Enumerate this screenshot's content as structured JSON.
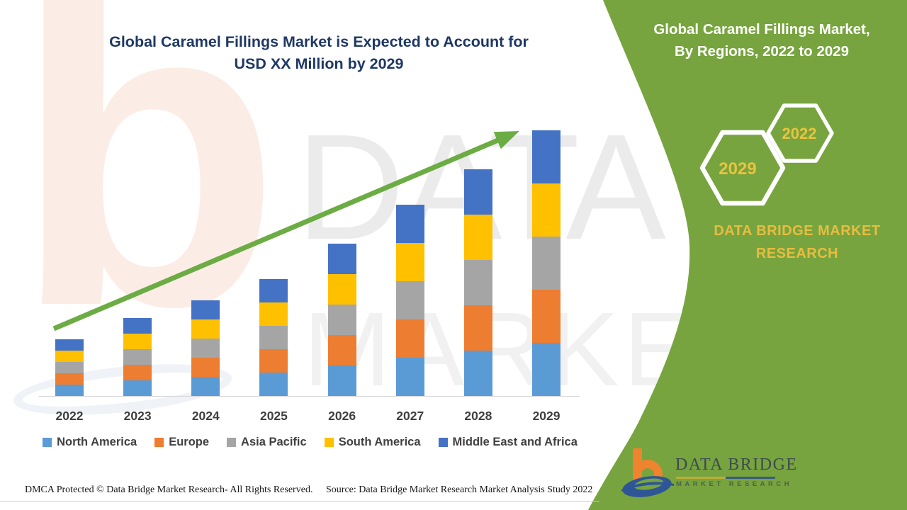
{
  "chart": {
    "title_lines": [
      "Global Caramel Fillings Market is Expected to Account for",
      "USD XX Million by 2029"
    ],
    "title_color": "#1F3864"
  },
  "chart_data": {
    "type": "bar",
    "stacked": true,
    "title": "Global Caramel Fillings Market is Expected to Account for USD XX Million by 2029",
    "xlabel": "",
    "ylabel": "",
    "value_note": "values are unlabeled (USD XX Million); heights estimated in relative units from pixels",
    "categories": [
      "2022",
      "2023",
      "2024",
      "2025",
      "2026",
      "2027",
      "2028",
      "2029"
    ],
    "series": [
      {
        "name": "North America",
        "color": "#5B9BD5",
        "values": [
          16,
          22,
          27,
          33,
          43,
          54,
          64,
          75
        ]
      },
      {
        "name": "Europe",
        "color": "#ED7D31",
        "values": [
          16,
          22,
          27,
          33,
          43,
          54,
          64,
          75
        ]
      },
      {
        "name": "Asia Pacific",
        "color": "#A5A5A5",
        "values": [
          16,
          22,
          27,
          33,
          43,
          54,
          64,
          75
        ]
      },
      {
        "name": "South America",
        "color": "#FFC000",
        "values": [
          16,
          22,
          27,
          33,
          43,
          54,
          64,
          75
        ]
      },
      {
        "name": "Middle East and Africa",
        "color": "#4472C4",
        "values": [
          16,
          22,
          27,
          33,
          43,
          54,
          64,
          75
        ]
      }
    ],
    "totals": [
      80,
      110,
      135,
      165,
      215,
      270,
      320,
      375
    ],
    "ylim": [
      0,
      391
    ],
    "grid": false,
    "legend_position": "bottom",
    "trend_arrow": {
      "present": true,
      "color": "#6CAC44"
    }
  },
  "side_panel": {
    "bg_color": "#77A43E",
    "title_lines": [
      "Global Caramel Fillings Market,",
      "By Regions, 2022 to 2029"
    ],
    "hexagons": [
      {
        "label": "2029"
      },
      {
        "label": "2022"
      }
    ],
    "hex_label_color": "#E9C43F",
    "brand_lines": [
      "DATA BRIDGE MARKET",
      "RESEARCH"
    ],
    "brand_color": "#E7BD41"
  },
  "logo": {
    "name": "DATA BRIDGE",
    "subtitle": "MARKET RESEARCH",
    "orange": "#F0832E",
    "blue": "#2E5596"
  },
  "footer": {
    "left": "DMCA Protected © Data Bridge Market Research- All Rights Reserved.",
    "right": "Source: Data Bridge Market Research Market Analysis Study 2022"
  },
  "watermark": {
    "letter": "b",
    "text_top": "DATA B",
    "text_bottom": "MARKET RE"
  }
}
